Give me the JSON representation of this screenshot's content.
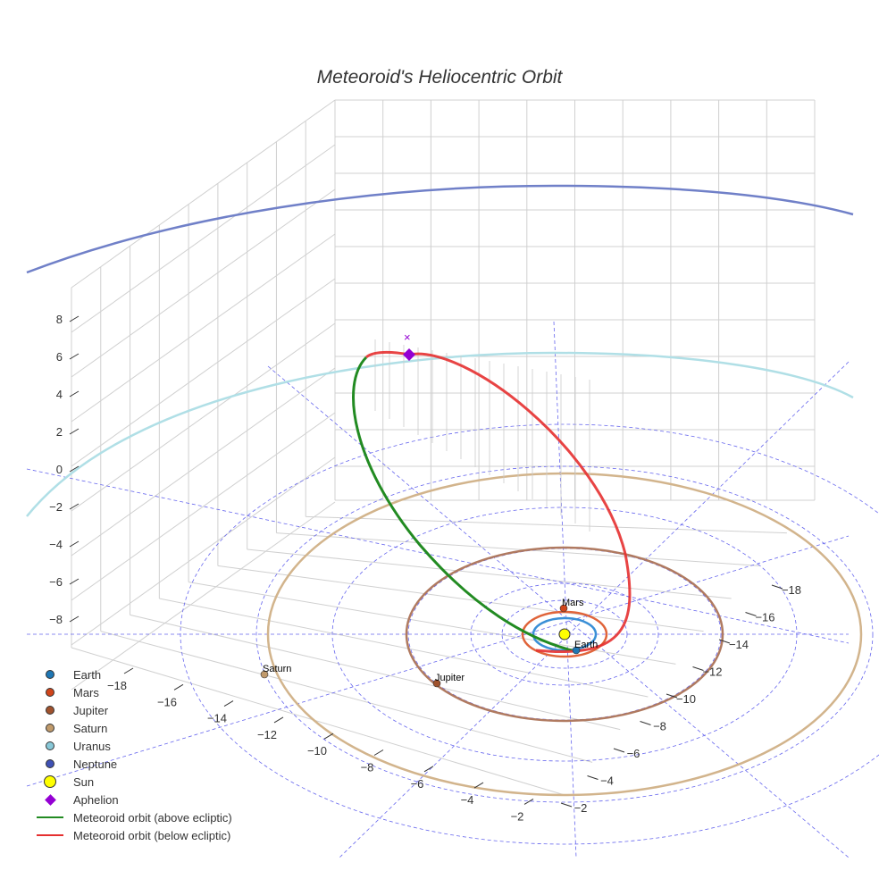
{
  "chart_data": {
    "type": "scatter3d",
    "title": "Meteoroid's Heliocentric Orbit",
    "z_ticks": [
      "8",
      "6",
      "4",
      "2",
      "0",
      "−2",
      "−4",
      "−6",
      "−8"
    ],
    "x_ticks": [
      "−18",
      "−16",
      "−14",
      "−12",
      "−10",
      "−8",
      "−6",
      "−4",
      "−2"
    ],
    "y_ticks": [
      "−18",
      "−16",
      "−14",
      "−12",
      "−10",
      "−8",
      "−6",
      "−4",
      "−2"
    ],
    "planets": [
      {
        "name": "Earth",
        "color": "#1f77b4",
        "orbit_color": "#3a8fd6",
        "orbit_au": 1.0
      },
      {
        "name": "Mars",
        "color": "#d0451b",
        "orbit_color": "#e0643a",
        "orbit_au": 1.52
      },
      {
        "name": "Jupiter",
        "color": "#a0522d",
        "orbit_color": "#b07a60",
        "orbit_au": 5.2
      },
      {
        "name": "Saturn",
        "color": "#c09a6b",
        "orbit_color": "#d2b48c",
        "orbit_au": 9.54
      },
      {
        "name": "Uranus",
        "color": "#88c8d8",
        "orbit_color": "#b0dfe6",
        "orbit_au": 19.2
      },
      {
        "name": "Neptune",
        "color": "#3f51b5",
        "orbit_color": "#7080c8",
        "orbit_au": 30.1
      }
    ],
    "sun": {
      "name": "Sun",
      "color": "#ffff00"
    },
    "aphelion": {
      "name": "Aphelion",
      "color": "#9400d3"
    },
    "orbit_above": {
      "name": "Meteoroid orbit (above ecliptic)",
      "color": "#228b22"
    },
    "orbit_below": {
      "name": "Meteoroid orbit (below ecliptic)",
      "color": "#e53030"
    },
    "grid_color": "#6666ee"
  }
}
